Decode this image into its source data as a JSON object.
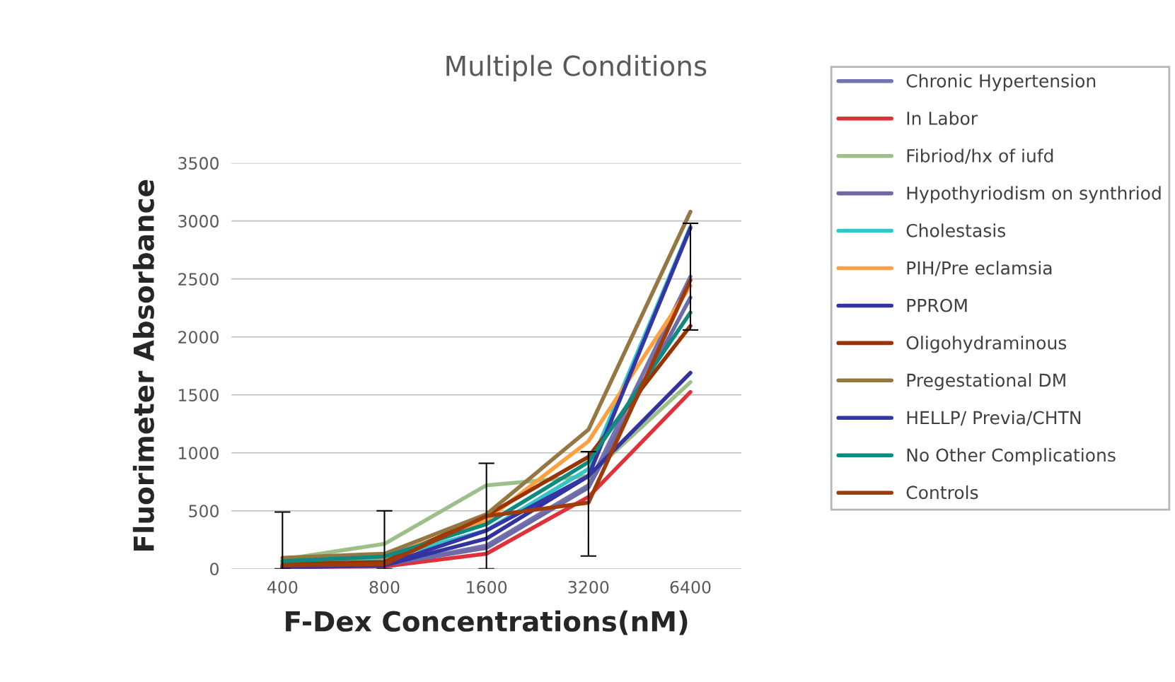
{
  "chart_data": {
    "type": "line",
    "title": "Multiple Conditions",
    "xlabel": "F-Dex Concentrations(nM)",
    "ylabel": "Fluorimeter Absorbance",
    "categories": [
      "400",
      "800",
      "1600",
      "3200",
      "6400"
    ],
    "ylim": [
      0,
      3500
    ],
    "yticks": [
      0,
      500,
      1000,
      1500,
      2000,
      2500,
      3000,
      3500
    ],
    "grid": "y",
    "legend": "right",
    "marker": "none",
    "line_style": "solid",
    "series": [
      {
        "name": "Chronic Hypertension",
        "color": "#7472b0",
        "values": [
          20,
          30,
          200,
          720,
          2520
        ]
      },
      {
        "name": "In Labor",
        "color": "#e0303a",
        "values": [
          15,
          20,
          130,
          620,
          1525
        ]
      },
      {
        "name": "Fibriod/hx of iufd",
        "color": "#9dc08b",
        "values": [
          80,
          215,
          720,
          800,
          1610
        ]
      },
      {
        "name": "Hypothyriodism on synthriod",
        "color": "#6e6aa8",
        "values": [
          20,
          35,
          180,
          700,
          2340
        ]
      },
      {
        "name": "Cholestasis",
        "color": "#33c6c6",
        "values": [
          60,
          90,
          330,
          860,
          2950
        ]
      },
      {
        "name": "PIH/Pre eclamsia",
        "color": "#ffa040",
        "values": [
          70,
          100,
          420,
          1100,
          2440
        ]
      },
      {
        "name": "PPROM",
        "color": "#3333a0",
        "values": [
          10,
          30,
          260,
          800,
          1690
        ]
      },
      {
        "name": "Oligohydraminous",
        "color": "#993300",
        "values": [
          40,
          60,
          460,
          965,
          2095
        ]
      },
      {
        "name": "Pregestational DM",
        "color": "#957744",
        "values": [
          95,
          130,
          470,
          1200,
          3080
        ]
      },
      {
        "name": "HELLP/ Previa/CHTN",
        "color": "#3535a5",
        "values": [
          10,
          35,
          330,
          800,
          2940
        ]
      },
      {
        "name": "No Other Complications",
        "color": "#0f8a80",
        "values": [
          65,
          105,
          385,
          920,
          2210
        ]
      },
      {
        "name": "Controls",
        "color": "#a03a08",
        "values": [
          30,
          40,
          455,
          570,
          2490
        ],
        "errors": [
          [
            0,
            490
          ],
          [
            0,
            500
          ],
          [
            0,
            910
          ],
          [
            110,
            1010
          ],
          [
            2060,
            2980
          ]
        ]
      }
    ]
  }
}
